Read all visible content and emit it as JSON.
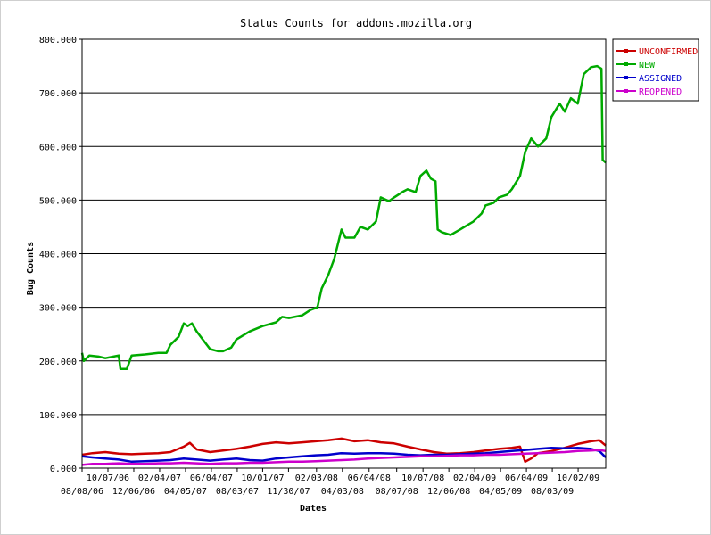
{
  "chart_data": {
    "type": "line",
    "title": "Status Counts for addons.mozilla.org",
    "xlabel": "Dates",
    "ylabel": "Bug Counts",
    "ylim": [
      0,
      800
    ],
    "y_ticks": [
      {
        "value": 0,
        "label": "0.000"
      },
      {
        "value": 100,
        "label": "100.000"
      },
      {
        "value": 200,
        "label": "200.000"
      },
      {
        "value": 300,
        "label": "300.000"
      },
      {
        "value": 400,
        "label": "400.000"
      },
      {
        "value": 500,
        "label": "500.000"
      },
      {
        "value": 600,
        "label": "600.000"
      },
      {
        "value": 700,
        "label": "700.000"
      },
      {
        "value": 800,
        "label": "800.000"
      }
    ],
    "grid": true,
    "legend_position": "right",
    "x_tick_labels": [
      {
        "label": "08/08/06",
        "date": "2006-08-08",
        "row": 2
      },
      {
        "label": "10/07/06",
        "date": "2006-10-07",
        "row": 1
      },
      {
        "label": "12/06/06",
        "date": "2006-12-06",
        "row": 2
      },
      {
        "label": "02/04/07",
        "date": "2007-02-04",
        "row": 1
      },
      {
        "label": "04/05/07",
        "date": "2007-04-05",
        "row": 2
      },
      {
        "label": "06/04/07",
        "date": "2007-06-04",
        "row": 1
      },
      {
        "label": "08/03/07",
        "date": "2007-08-03",
        "row": 2
      },
      {
        "label": "10/01/07",
        "date": "2007-10-01",
        "row": 1
      },
      {
        "label": "11/30/07",
        "date": "2007-11-30",
        "row": 2
      },
      {
        "label": "02/03/08",
        "date": "2008-02-03",
        "row": 1
      },
      {
        "label": "04/03/08",
        "date": "2008-04-03",
        "row": 2
      },
      {
        "label": "06/04/08",
        "date": "2008-06-04",
        "row": 1
      },
      {
        "label": "08/07/08",
        "date": "2008-08-07",
        "row": 2
      },
      {
        "label": "10/07/08",
        "date": "2008-10-07",
        "row": 1
      },
      {
        "label": "12/06/08",
        "date": "2008-12-06",
        "row": 2
      },
      {
        "label": "02/04/09",
        "date": "2009-02-04",
        "row": 1
      },
      {
        "label": "04/05/09",
        "date": "2009-04-05",
        "row": 2
      },
      {
        "label": "06/04/09",
        "date": "2009-06-04",
        "row": 1
      },
      {
        "label": "08/03/09",
        "date": "2009-08-03",
        "row": 2
      },
      {
        "label": "10/02/09",
        "date": "2009-10-02",
        "row": 1
      }
    ],
    "x_range": [
      "2006-08-08",
      "2009-12-05"
    ],
    "series": [
      {
        "name": "UNCONFIRMED",
        "color": "#cc0000",
        "points": [
          [
            "2006-08-08",
            25
          ],
          [
            "2006-09-01",
            28
          ],
          [
            "2006-10-01",
            30
          ],
          [
            "2006-11-01",
            27
          ],
          [
            "2006-12-01",
            26
          ],
          [
            "2007-01-01",
            27
          ],
          [
            "2007-02-01",
            28
          ],
          [
            "2007-03-01",
            30
          ],
          [
            "2007-04-01",
            40
          ],
          [
            "2007-04-15",
            47
          ],
          [
            "2007-05-01",
            35
          ],
          [
            "2007-06-01",
            30
          ],
          [
            "2007-07-01",
            33
          ],
          [
            "2007-08-01",
            36
          ],
          [
            "2007-09-01",
            40
          ],
          [
            "2007-10-01",
            45
          ],
          [
            "2007-11-01",
            48
          ],
          [
            "2007-12-01",
            46
          ],
          [
            "2008-01-01",
            48
          ],
          [
            "2008-02-01",
            50
          ],
          [
            "2008-03-01",
            52
          ],
          [
            "2008-04-01",
            55
          ],
          [
            "2008-05-01",
            50
          ],
          [
            "2008-06-01",
            52
          ],
          [
            "2008-07-01",
            48
          ],
          [
            "2008-08-01",
            46
          ],
          [
            "2008-09-01",
            40
          ],
          [
            "2008-10-01",
            35
          ],
          [
            "2008-11-01",
            30
          ],
          [
            "2008-12-01",
            27
          ],
          [
            "2009-01-01",
            28
          ],
          [
            "2009-02-01",
            30
          ],
          [
            "2009-03-01",
            33
          ],
          [
            "2009-04-01",
            36
          ],
          [
            "2009-05-01",
            38
          ],
          [
            "2009-05-20",
            40
          ],
          [
            "2009-06-01",
            12
          ],
          [
            "2009-06-15",
            18
          ],
          [
            "2009-07-01",
            28
          ],
          [
            "2009-08-01",
            32
          ],
          [
            "2009-09-01",
            38
          ],
          [
            "2009-10-01",
            45
          ],
          [
            "2009-11-01",
            50
          ],
          [
            "2009-11-20",
            52
          ],
          [
            "2009-12-05",
            42
          ]
        ]
      },
      {
        "name": "NEW",
        "color": "#00aa00",
        "points": [
          [
            "2006-08-08",
            215
          ],
          [
            "2006-08-12",
            200
          ],
          [
            "2006-08-25",
            210
          ],
          [
            "2006-09-15",
            208
          ],
          [
            "2006-10-01",
            205
          ],
          [
            "2006-10-20",
            208
          ],
          [
            "2006-11-01",
            210
          ],
          [
            "2006-11-05",
            185
          ],
          [
            "2006-11-20",
            185
          ],
          [
            "2006-12-01",
            210
          ],
          [
            "2007-01-01",
            212
          ],
          [
            "2007-02-01",
            215
          ],
          [
            "2007-02-20",
            215
          ],
          [
            "2007-03-01",
            230
          ],
          [
            "2007-03-20",
            245
          ],
          [
            "2007-04-01",
            270
          ],
          [
            "2007-04-10",
            265
          ],
          [
            "2007-04-20",
            270
          ],
          [
            "2007-05-01",
            255
          ],
          [
            "2007-05-15",
            240
          ],
          [
            "2007-06-01",
            222
          ],
          [
            "2007-06-20",
            218
          ],
          [
            "2007-07-01",
            218
          ],
          [
            "2007-07-20",
            225
          ],
          [
            "2007-08-01",
            240
          ],
          [
            "2007-09-01",
            255
          ],
          [
            "2007-10-01",
            265
          ],
          [
            "2007-11-01",
            272
          ],
          [
            "2007-11-15",
            282
          ],
          [
            "2007-12-01",
            280
          ],
          [
            "2008-01-01",
            285
          ],
          [
            "2008-01-20",
            295
          ],
          [
            "2008-02-05",
            300
          ],
          [
            "2008-02-15",
            335
          ],
          [
            "2008-03-01",
            360
          ],
          [
            "2008-03-15",
            390
          ],
          [
            "2008-04-01",
            445
          ],
          [
            "2008-04-10",
            430
          ],
          [
            "2008-05-01",
            430
          ],
          [
            "2008-05-15",
            450
          ],
          [
            "2008-06-01",
            445
          ],
          [
            "2008-06-20",
            460
          ],
          [
            "2008-07-01",
            505
          ],
          [
            "2008-07-20",
            498
          ],
          [
            "2008-08-01",
            505
          ],
          [
            "2008-08-20",
            515
          ],
          [
            "2008-09-01",
            520
          ],
          [
            "2008-09-20",
            515
          ],
          [
            "2008-10-01",
            545
          ],
          [
            "2008-10-15",
            555
          ],
          [
            "2008-10-25",
            540
          ],
          [
            "2008-11-05",
            535
          ],
          [
            "2008-11-10",
            445
          ],
          [
            "2008-11-20",
            440
          ],
          [
            "2008-12-10",
            435
          ],
          [
            "2009-01-01",
            445
          ],
          [
            "2009-02-01",
            460
          ],
          [
            "2009-02-20",
            475
          ],
          [
            "2009-03-01",
            490
          ],
          [
            "2009-03-20",
            495
          ],
          [
            "2009-04-01",
            505
          ],
          [
            "2009-04-20",
            510
          ],
          [
            "2009-05-01",
            520
          ],
          [
            "2009-05-20",
            545
          ],
          [
            "2009-06-01",
            590
          ],
          [
            "2009-06-15",
            615
          ],
          [
            "2009-07-01",
            600
          ],
          [
            "2009-07-20",
            615
          ],
          [
            "2009-08-01",
            655
          ],
          [
            "2009-08-20",
            680
          ],
          [
            "2009-09-01",
            665
          ],
          [
            "2009-09-15",
            690
          ],
          [
            "2009-10-01",
            680
          ],
          [
            "2009-10-15",
            735
          ],
          [
            "2009-11-01",
            748
          ],
          [
            "2009-11-15",
            750
          ],
          [
            "2009-11-25",
            745
          ],
          [
            "2009-11-28",
            575
          ],
          [
            "2009-12-05",
            570
          ]
        ]
      },
      {
        "name": "ASSIGNED",
        "color": "#0000cc",
        "points": [
          [
            "2006-08-08",
            22
          ],
          [
            "2006-09-01",
            20
          ],
          [
            "2006-10-01",
            18
          ],
          [
            "2006-11-01",
            16
          ],
          [
            "2006-12-01",
            12
          ],
          [
            "2007-01-01",
            13
          ],
          [
            "2007-02-01",
            14
          ],
          [
            "2007-03-01",
            15
          ],
          [
            "2007-04-01",
            18
          ],
          [
            "2007-05-01",
            16
          ],
          [
            "2007-06-01",
            14
          ],
          [
            "2007-07-01",
            16
          ],
          [
            "2007-08-01",
            18
          ],
          [
            "2007-09-01",
            15
          ],
          [
            "2007-10-01",
            14
          ],
          [
            "2007-11-01",
            18
          ],
          [
            "2007-12-01",
            20
          ],
          [
            "2008-01-01",
            22
          ],
          [
            "2008-02-01",
            24
          ],
          [
            "2008-03-01",
            25
          ],
          [
            "2008-04-01",
            28
          ],
          [
            "2008-05-01",
            27
          ],
          [
            "2008-06-01",
            28
          ],
          [
            "2008-07-01",
            28
          ],
          [
            "2008-08-01",
            27
          ],
          [
            "2008-09-01",
            25
          ],
          [
            "2008-10-01",
            24
          ],
          [
            "2008-11-01",
            25
          ],
          [
            "2008-12-01",
            25
          ],
          [
            "2009-01-01",
            26
          ],
          [
            "2009-02-01",
            27
          ],
          [
            "2009-03-01",
            28
          ],
          [
            "2009-04-01",
            30
          ],
          [
            "2009-05-01",
            32
          ],
          [
            "2009-06-01",
            34
          ],
          [
            "2009-07-01",
            36
          ],
          [
            "2009-08-01",
            38
          ],
          [
            "2009-09-01",
            37
          ],
          [
            "2009-10-01",
            38
          ],
          [
            "2009-11-01",
            36
          ],
          [
            "2009-11-20",
            32
          ],
          [
            "2009-12-05",
            20
          ]
        ]
      },
      {
        "name": "REOPENED",
        "color": "#cc00cc",
        "points": [
          [
            "2006-08-08",
            6
          ],
          [
            "2006-09-01",
            8
          ],
          [
            "2006-10-01",
            8
          ],
          [
            "2006-11-01",
            9
          ],
          [
            "2006-12-01",
            8
          ],
          [
            "2007-01-01",
            8
          ],
          [
            "2007-02-01",
            9
          ],
          [
            "2007-03-01",
            9
          ],
          [
            "2007-04-01",
            10
          ],
          [
            "2007-05-01",
            9
          ],
          [
            "2007-06-01",
            8
          ],
          [
            "2007-07-01",
            9
          ],
          [
            "2007-08-01",
            9
          ],
          [
            "2007-09-01",
            10
          ],
          [
            "2007-10-01",
            10
          ],
          [
            "2007-11-01",
            11
          ],
          [
            "2007-12-01",
            12
          ],
          [
            "2008-01-01",
            12
          ],
          [
            "2008-02-01",
            13
          ],
          [
            "2008-03-01",
            14
          ],
          [
            "2008-04-01",
            15
          ],
          [
            "2008-05-01",
            16
          ],
          [
            "2008-06-01",
            18
          ],
          [
            "2008-07-01",
            19
          ],
          [
            "2008-08-01",
            20
          ],
          [
            "2008-09-01",
            21
          ],
          [
            "2008-10-01",
            22
          ],
          [
            "2008-11-01",
            22
          ],
          [
            "2008-12-01",
            23
          ],
          [
            "2009-01-01",
            24
          ],
          [
            "2009-02-01",
            24
          ],
          [
            "2009-03-01",
            25
          ],
          [
            "2009-04-01",
            25
          ],
          [
            "2009-05-01",
            26
          ],
          [
            "2009-06-01",
            27
          ],
          [
            "2009-07-01",
            28
          ],
          [
            "2009-08-01",
            29
          ],
          [
            "2009-09-01",
            30
          ],
          [
            "2009-10-01",
            32
          ],
          [
            "2009-11-01",
            33
          ],
          [
            "2009-11-20",
            34
          ],
          [
            "2009-12-05",
            32
          ]
        ]
      }
    ]
  }
}
